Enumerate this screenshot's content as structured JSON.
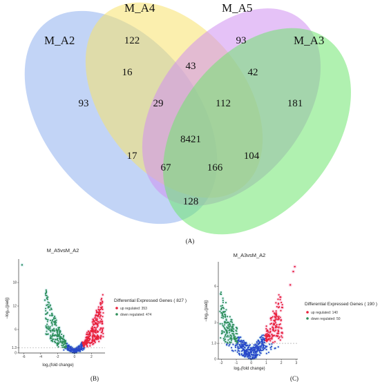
{
  "panels": {
    "a": "(A)",
    "b": "(B)",
    "c": "(C)"
  },
  "venn": {
    "sets": [
      {
        "name": "M_A2",
        "color": "#8fb0ee"
      },
      {
        "name": "M_A4",
        "color": "#f7e26b"
      },
      {
        "name": "M_A5",
        "color": "#d08ff0"
      },
      {
        "name": "M_A3",
        "color": "#6fe56f"
      }
    ],
    "regions": [
      {
        "sets": [
          "M_A2"
        ],
        "count": 93
      },
      {
        "sets": [
          "M_A4"
        ],
        "count": 122
      },
      {
        "sets": [
          "M_A5"
        ],
        "count": 93
      },
      {
        "sets": [
          "M_A3"
        ],
        "count": 181
      },
      {
        "sets": [
          "M_A2",
          "M_A4"
        ],
        "count": 16
      },
      {
        "sets": [
          "M_A4",
          "M_A5"
        ],
        "count": 43
      },
      {
        "sets": [
          "M_A5",
          "M_A3"
        ],
        "count": 42
      },
      {
        "sets": [
          "M_A2",
          "M_A4",
          "M_A5"
        ],
        "count": 29
      },
      {
        "sets": [
          "M_A4",
          "M_A5",
          "M_A3"
        ],
        "count": 112
      },
      {
        "sets": [
          "M_A2",
          "M_A4",
          "M_A5",
          "M_A3"
        ],
        "count": 8421
      },
      {
        "sets": [
          "M_A2",
          "M_A5"
        ],
        "count": 17
      },
      {
        "sets": [
          "M_A4",
          "M_A3"
        ],
        "count": 104
      },
      {
        "sets": [
          "M_A2",
          "M_A5",
          "M_A3"
        ],
        "count": 67
      },
      {
        "sets": [
          "M_A2",
          "M_A4",
          "M_A3"
        ],
        "count": 166
      },
      {
        "sets": [
          "M_A2",
          "M_A3"
        ],
        "count": 128
      }
    ]
  },
  "chart_data": [
    {
      "type": "scatter",
      "title": "M_A5vsM_A2",
      "xlabel": "log₂(fold change)",
      "ylabel": "−log₁₀(padj)",
      "xticks": [
        -6,
        -4,
        -2,
        0,
        2
      ],
      "yticks": [
        0,
        1.3,
        6,
        12,
        18
      ],
      "xlim": [
        -6.6,
        3.6
      ],
      "ylim": [
        0,
        24
      ],
      "threshold": 1.3,
      "legend": {
        "title": "Differential Expressed Genes ( 827 )",
        "items": [
          {
            "label": "up regulated: 353",
            "color": "#e8203a"
          },
          {
            "label": "down regulated: 474",
            "color": "#2f8f5a"
          }
        ]
      },
      "colors": {
        "up": "#e8203a",
        "down": "#2f8f5a",
        "ns": "#2748c9",
        "halo_up": "#f5b8d8",
        "halo_ns": "#c8e8f2"
      },
      "highlight_points": [
        {
          "x": -6.2,
          "y": 22.5,
          "g": "down"
        },
        {
          "x": -3.5,
          "y": 13.5,
          "g": "down"
        },
        {
          "x": -3.3,
          "y": 12.2,
          "g": "down"
        },
        {
          "x": -2.6,
          "y": 9.6,
          "g": "down"
        },
        {
          "x": 2.2,
          "y": 8.6,
          "g": "up"
        },
        {
          "x": 2.7,
          "y": 7.2,
          "g": "up"
        },
        {
          "x": 3.0,
          "y": 5.9,
          "g": "up"
        }
      ]
    },
    {
      "type": "scatter",
      "title": "M_A3vsM_A2",
      "xlabel": "log₂(fold change)",
      "ylabel": "−log₁₀(padj)",
      "xticks": [
        -2,
        -1,
        0,
        1,
        2,
        3
      ],
      "yticks": [
        0,
        1.3,
        3,
        6
      ],
      "xlim": [
        -2.2,
        3.1
      ],
      "ylim": [
        0,
        8
      ],
      "threshold": 1.3,
      "legend": {
        "title": "Differential Expressed Genes ( 190 )",
        "items": [
          {
            "label": "up regulated: 140",
            "color": "#e8203a"
          },
          {
            "label": "down regulated: 50",
            "color": "#2f8f5a"
          }
        ]
      },
      "colors": {
        "up": "#e8203a",
        "down": "#2f8f5a",
        "ns": "#2748c9",
        "halo_up": "#f5b8d8",
        "halo_ns": "#c8e8f2"
      },
      "highlight_points": [
        {
          "x": 2.9,
          "y": 7.6,
          "g": "up"
        },
        {
          "x": 2.8,
          "y": 7.2,
          "g": "up"
        },
        {
          "x": 2.6,
          "y": 6.1,
          "g": "up"
        },
        {
          "x": -1.6,
          "y": 3.0,
          "g": "down"
        },
        {
          "x": -1.3,
          "y": 2.4,
          "g": "down"
        }
      ]
    }
  ]
}
